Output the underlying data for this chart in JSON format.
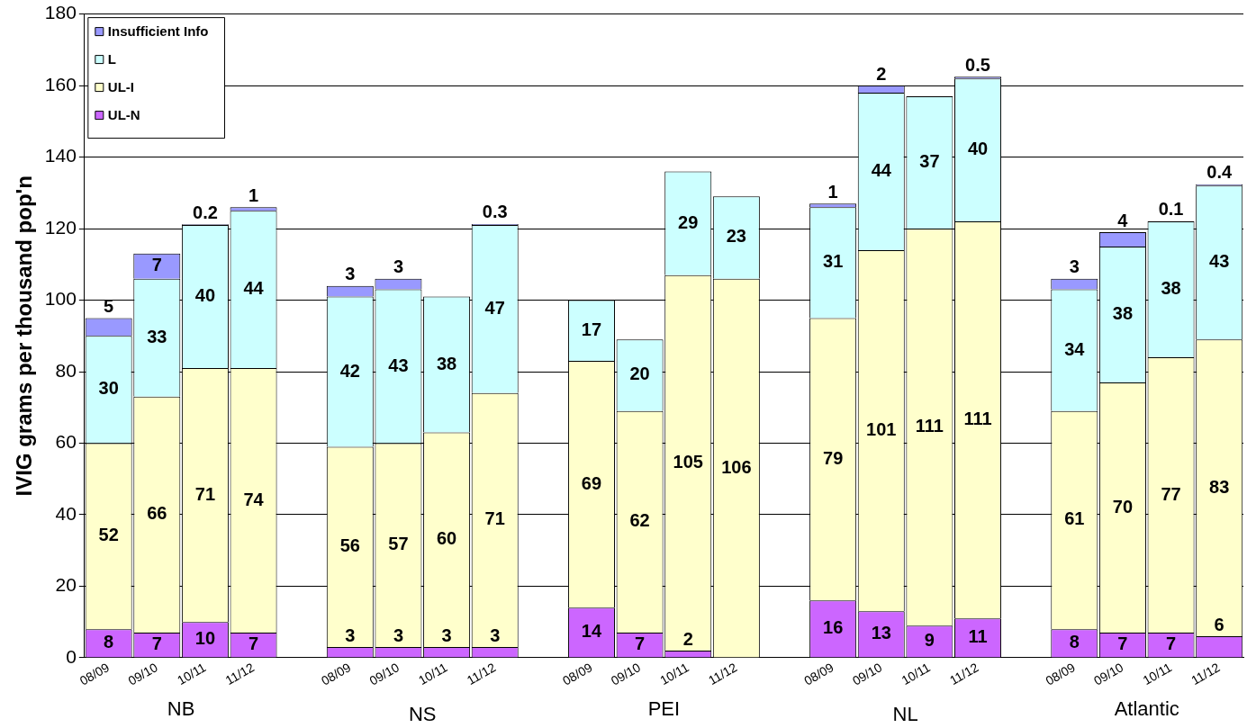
{
  "chart_data": {
    "type": "bar",
    "stacked": true,
    "ylabel": "IVIG grams per thousand pop'n",
    "categories": [
      "08/09",
      "09/10",
      "10/11",
      "11/12",
      null,
      "08/09",
      "09/10",
      "10/11",
      "11/12",
      null,
      "08/09",
      "09/10",
      "10/11",
      "11/12",
      null,
      "08/09",
      "09/10",
      "10/11",
      "11/12",
      null,
      "08/09",
      "09/10",
      "10/11",
      "11/12"
    ],
    "series": [
      {
        "name": "UL-N",
        "color": "#cc66ff",
        "values": [
          8,
          7,
          10,
          7,
          null,
          3,
          3,
          3,
          3,
          null,
          14,
          7,
          2,
          null,
          null,
          16,
          13,
          9,
          11,
          null,
          8,
          7,
          7,
          6
        ]
      },
      {
        "name": "UL-I",
        "color": "#ffffcc",
        "values": [
          52,
          66,
          71,
          74,
          null,
          56,
          57,
          60,
          71,
          null,
          69,
          62,
          105,
          106,
          null,
          79,
          101,
          111,
          111,
          null,
          61,
          70,
          77,
          83
        ]
      },
      {
        "name": "L",
        "color": "#ccffff",
        "values": [
          30,
          33,
          40,
          44,
          null,
          42,
          43,
          38,
          47,
          null,
          17,
          20,
          29,
          23,
          null,
          31,
          44,
          37,
          40,
          null,
          34,
          38,
          38,
          43
        ]
      },
      {
        "name": "Insufficient Info",
        "color": "#9999ff",
        "values": [
          5,
          7,
          0.2,
          1,
          null,
          3,
          3,
          null,
          0.3,
          null,
          null,
          null,
          null,
          null,
          null,
          1,
          2,
          null,
          0.5,
          null,
          3,
          4,
          0.1,
          0.4
        ]
      }
    ],
    "ylim": [
      0,
      180
    ],
    "yticks": [
      0,
      20,
      40,
      60,
      80,
      100,
      120,
      140,
      160,
      180
    ],
    "grid": "y",
    "legend": "top left",
    "data_labels": true,
    "annotations": [
      "NB",
      "NS",
      "PEI",
      "NL",
      "Atlantic"
    ]
  }
}
